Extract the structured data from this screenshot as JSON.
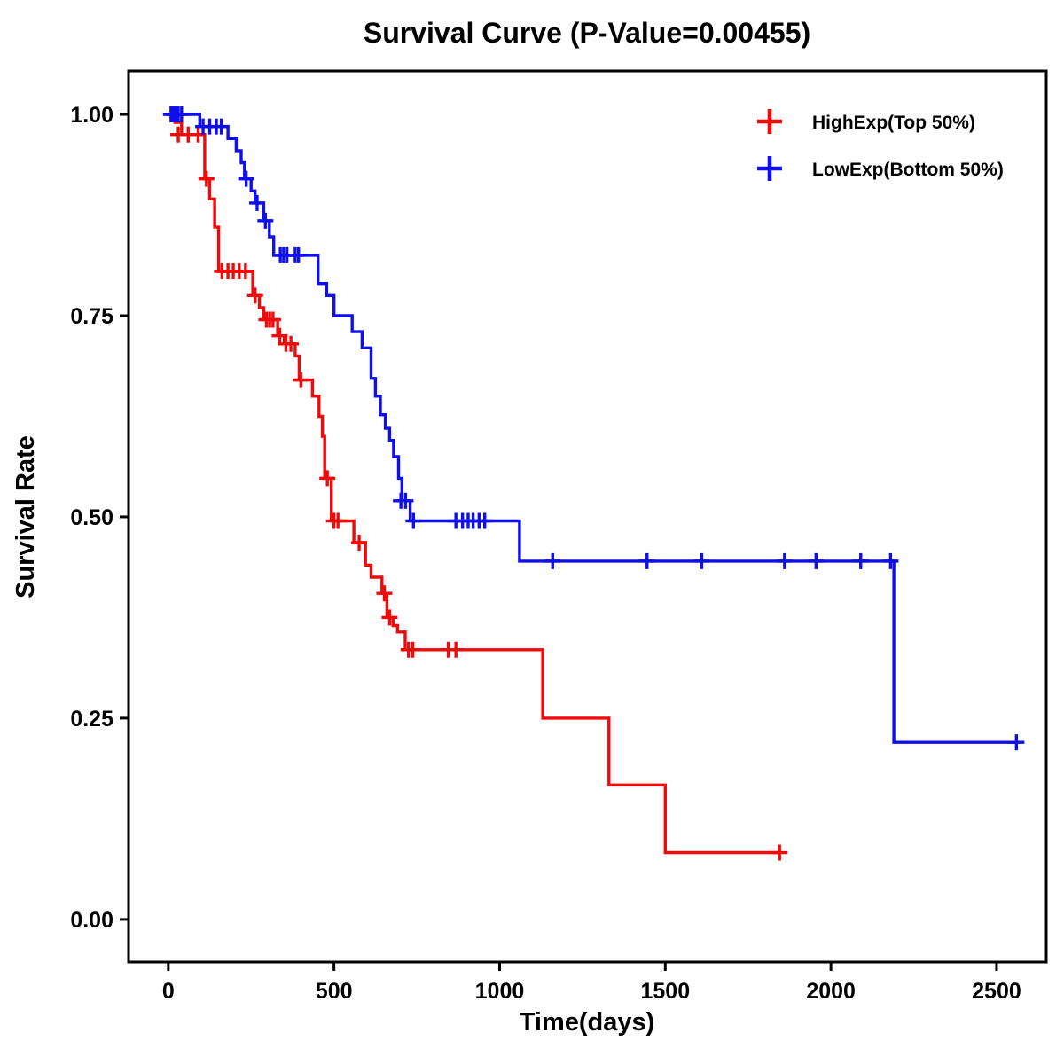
{
  "title": "Survival Curve (P-Value=0.00455)",
  "chart_data": {
    "type": "line",
    "subtype": "kaplan-meier-step-function",
    "title": "Survival Curve (P-Value=0.00455)",
    "xlabel": "Time(days)",
    "ylabel": "Survival Rate",
    "p_value": "0.00455",
    "xlim": [
      -120,
      2650
    ],
    "ylim": [
      -0.053,
      1.054
    ],
    "x_ticks": [
      0,
      500,
      1000,
      1500,
      2000,
      2500
    ],
    "x_tick_labels": [
      "0",
      "500",
      "1000",
      "1500",
      "2000",
      "2500"
    ],
    "y_ticks": [
      0.0,
      0.25,
      0.5,
      0.75,
      1.0
    ],
    "y_tick_labels": [
      "0.00",
      "0.25",
      "0.50",
      "0.75",
      "1.00"
    ],
    "grid": false,
    "legend_position": "top-right",
    "series": [
      {
        "name": "HighExp(Top 50%)",
        "color": "#F00A0A",
        "end_time": 1845,
        "steps": [
          [
            0,
            1.0
          ],
          [
            20,
            0.99
          ],
          [
            40,
            0.975
          ],
          [
            110,
            0.92
          ],
          [
            125,
            0.895
          ],
          [
            140,
            0.86
          ],
          [
            152,
            0.805
          ],
          [
            255,
            0.775
          ],
          [
            275,
            0.76
          ],
          [
            288,
            0.745
          ],
          [
            330,
            0.725
          ],
          [
            350,
            0.715
          ],
          [
            383,
            0.7
          ],
          [
            395,
            0.67
          ],
          [
            435,
            0.65
          ],
          [
            455,
            0.625
          ],
          [
            465,
            0.6
          ],
          [
            472,
            0.548
          ],
          [
            492,
            0.495
          ],
          [
            560,
            0.468
          ],
          [
            595,
            0.44
          ],
          [
            612,
            0.425
          ],
          [
            645,
            0.405
          ],
          [
            660,
            0.375
          ],
          [
            678,
            0.365
          ],
          [
            692,
            0.357
          ],
          [
            715,
            0.335
          ],
          [
            1130,
            0.25
          ],
          [
            1330,
            0.167
          ],
          [
            1500,
            0.083
          ]
        ],
        "censors": [
          [
            30,
            0.975
          ],
          [
            60,
            0.975
          ],
          [
            90,
            0.975
          ],
          [
            115,
            0.92
          ],
          [
            162,
            0.805
          ],
          [
            180,
            0.805
          ],
          [
            196,
            0.805
          ],
          [
            214,
            0.805
          ],
          [
            233,
            0.805
          ],
          [
            262,
            0.775
          ],
          [
            296,
            0.745
          ],
          [
            306,
            0.745
          ],
          [
            316,
            0.745
          ],
          [
            336,
            0.725
          ],
          [
            355,
            0.715
          ],
          [
            370,
            0.715
          ],
          [
            400,
            0.67
          ],
          [
            480,
            0.548
          ],
          [
            500,
            0.495
          ],
          [
            512,
            0.495
          ],
          [
            576,
            0.468
          ],
          [
            652,
            0.405
          ],
          [
            668,
            0.375
          ],
          [
            725,
            0.335
          ],
          [
            738,
            0.335
          ],
          [
            845,
            0.335
          ],
          [
            868,
            0.335
          ],
          [
            1845,
            0.083
          ]
        ]
      },
      {
        "name": "LowExp(Bottom 50%)",
        "color": "#0F0FEE",
        "end_time": 2565,
        "steps": [
          [
            0,
            1.0
          ],
          [
            95,
            0.985
          ],
          [
            180,
            0.97
          ],
          [
            205,
            0.955
          ],
          [
            220,
            0.94
          ],
          [
            230,
            0.92
          ],
          [
            250,
            0.905
          ],
          [
            262,
            0.89
          ],
          [
            288,
            0.868
          ],
          [
            305,
            0.848
          ],
          [
            318,
            0.825
          ],
          [
            452,
            0.79
          ],
          [
            478,
            0.775
          ],
          [
            500,
            0.75
          ],
          [
            555,
            0.73
          ],
          [
            585,
            0.71
          ],
          [
            612,
            0.672
          ],
          [
            625,
            0.65
          ],
          [
            640,
            0.627
          ],
          [
            655,
            0.61
          ],
          [
            668,
            0.595
          ],
          [
            680,
            0.575
          ],
          [
            695,
            0.548
          ],
          [
            705,
            0.52
          ],
          [
            730,
            0.495
          ],
          [
            1060,
            0.445
          ],
          [
            2190,
            0.22
          ]
        ],
        "censors": [
          [
            8,
            1.0
          ],
          [
            15,
            1.0
          ],
          [
            22,
            1.0
          ],
          [
            30,
            1.0
          ],
          [
            40,
            1.0
          ],
          [
            105,
            0.985
          ],
          [
            125,
            0.985
          ],
          [
            145,
            0.985
          ],
          [
            160,
            0.985
          ],
          [
            235,
            0.92
          ],
          [
            268,
            0.89
          ],
          [
            293,
            0.868
          ],
          [
            338,
            0.825
          ],
          [
            348,
            0.825
          ],
          [
            358,
            0.825
          ],
          [
            383,
            0.825
          ],
          [
            393,
            0.825
          ],
          [
            702,
            0.52
          ],
          [
            716,
            0.52
          ],
          [
            740,
            0.495
          ],
          [
            868,
            0.495
          ],
          [
            888,
            0.495
          ],
          [
            905,
            0.495
          ],
          [
            920,
            0.495
          ],
          [
            938,
            0.495
          ],
          [
            955,
            0.495
          ],
          [
            1160,
            0.445
          ],
          [
            1445,
            0.445
          ],
          [
            1610,
            0.445
          ],
          [
            1860,
            0.445
          ],
          [
            1955,
            0.445
          ],
          [
            2090,
            0.445
          ],
          [
            2180,
            0.445
          ],
          [
            2560,
            0.22
          ]
        ]
      }
    ]
  }
}
